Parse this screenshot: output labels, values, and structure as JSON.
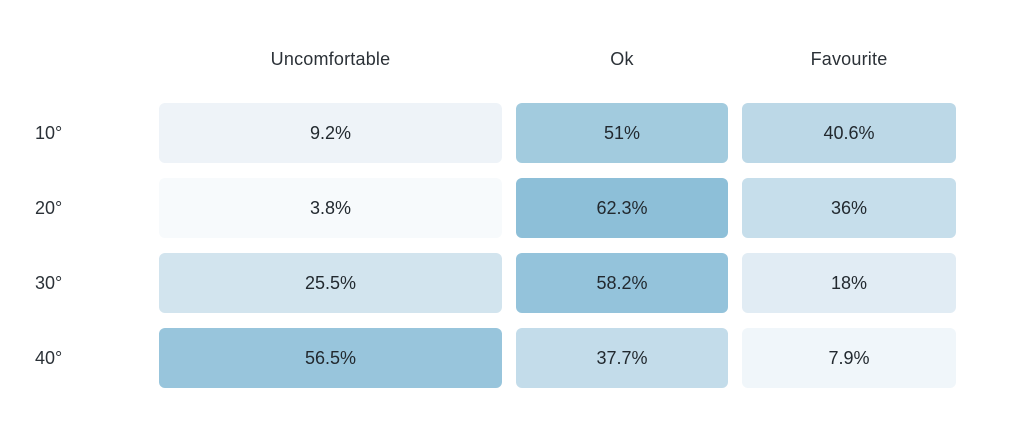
{
  "table": {
    "columns": [
      {
        "label": "Uncomfortable"
      },
      {
        "label": "Ok"
      },
      {
        "label": "Favourite"
      }
    ],
    "rows": [
      {
        "label": "10°",
        "cells": [
          {
            "value": "9.2%",
            "color": "#eef3f8"
          },
          {
            "value": "51%",
            "color": "#a2cbde"
          },
          {
            "value": "40.6%",
            "color": "#bcd8e7"
          }
        ]
      },
      {
        "label": "20°",
        "cells": [
          {
            "value": "3.8%",
            "color": "#f7fafc"
          },
          {
            "value": "62.3%",
            "color": "#8dbfd8"
          },
          {
            "value": "36%",
            "color": "#c6deeb"
          }
        ]
      },
      {
        "label": "30°",
        "cells": [
          {
            "value": "25.5%",
            "color": "#d2e4ee"
          },
          {
            "value": "58.2%",
            "color": "#94c3db"
          },
          {
            "value": "18%",
            "color": "#e1ecf4"
          }
        ]
      },
      {
        "label": "40°",
        "cells": [
          {
            "value": "56.5%",
            "color": "#98c5dc"
          },
          {
            "value": "37.7%",
            "color": "#c3dcea"
          },
          {
            "value": "7.9%",
            "color": "#f0f6fa"
          }
        ]
      }
    ],
    "text_color": "#2b3137",
    "background": "#ffffff"
  },
  "chart_data": {
    "type": "heatmap",
    "title": "",
    "x_categories": [
      "Uncomfortable",
      "Ok",
      "Favourite"
    ],
    "y_categories": [
      "10°",
      "20°",
      "30°",
      "40°"
    ],
    "values": [
      [
        9.2,
        51,
        40.6
      ],
      [
        3.8,
        62.3,
        36
      ],
      [
        25.5,
        58.2,
        18
      ],
      [
        56.5,
        37.7,
        7.9
      ]
    ],
    "value_unit": "percent",
    "color_scale": {
      "min_value": 3.8,
      "max_value": 62.3,
      "min_color": "#f7fafc",
      "max_color": "#8dbfd8"
    },
    "legend": "none",
    "grid": "off"
  }
}
